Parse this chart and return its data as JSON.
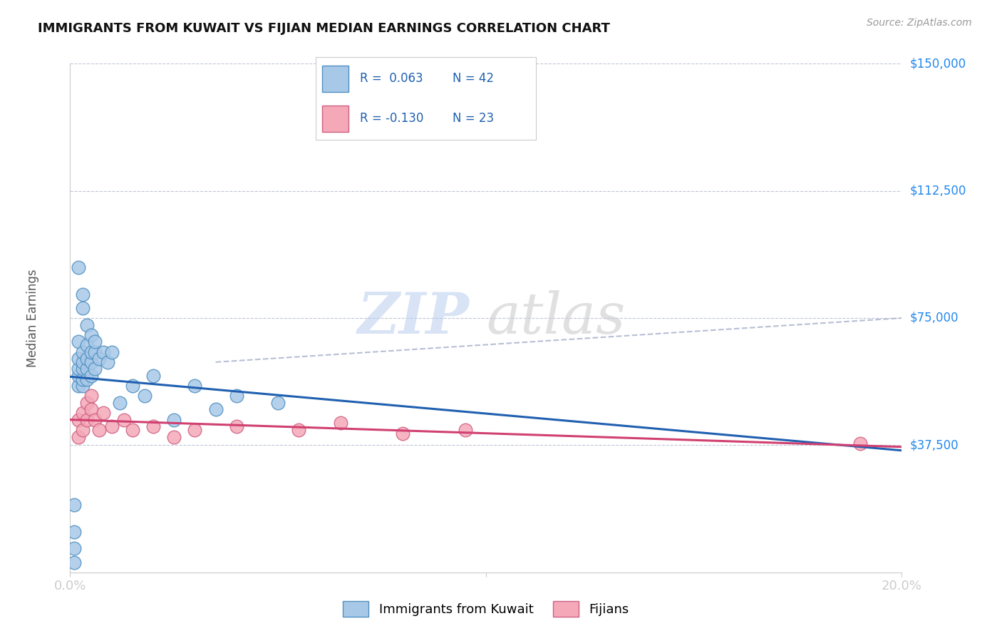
{
  "title": "IMMIGRANTS FROM KUWAIT VS FIJIAN MEDIAN EARNINGS CORRELATION CHART",
  "source": "Source: ZipAtlas.com",
  "ylabel": "Median Earnings",
  "y_ticks": [
    0,
    37500,
    75000,
    112500,
    150000
  ],
  "y_tick_labels": [
    "",
    "$37,500",
    "$75,000",
    "$112,500",
    "$150,000"
  ],
  "xmin": 0.0,
  "xmax": 0.2,
  "ymin": 0,
  "ymax": 150000,
  "blue_color": "#a8c8e8",
  "pink_color": "#f4a8b8",
  "blue_edge": "#5090c0",
  "pink_edge": "#d06080",
  "trend_blue": "#2060b0",
  "trend_pink": "#d04070",
  "dashed_color": "#b0b8d0",
  "legend_label_blue": "Immigrants from Kuwait",
  "legend_label_pink": "Fijians",
  "blue_x": [
    0.001,
    0.001,
    0.001,
    0.001,
    0.002,
    0.002,
    0.002,
    0.002,
    0.002,
    0.003,
    0.003,
    0.003,
    0.003,
    0.003,
    0.004,
    0.004,
    0.004,
    0.004,
    0.005,
    0.005,
    0.005,
    0.006,
    0.006,
    0.007,
    0.008,
    0.009,
    0.01,
    0.012,
    0.015,
    0.018,
    0.02,
    0.025,
    0.03,
    0.035,
    0.04,
    0.05,
    0.002,
    0.003,
    0.003,
    0.004,
    0.005,
    0.006
  ],
  "blue_y": [
    3000,
    7000,
    12000,
    20000,
    55000,
    58000,
    60000,
    63000,
    68000,
    55000,
    57000,
    60000,
    62000,
    65000,
    57000,
    60000,
    63000,
    67000,
    58000,
    62000,
    65000,
    60000,
    65000,
    63000,
    65000,
    62000,
    65000,
    50000,
    55000,
    52000,
    58000,
    45000,
    55000,
    48000,
    52000,
    50000,
    90000,
    82000,
    78000,
    73000,
    70000,
    68000
  ],
  "pink_x": [
    0.002,
    0.002,
    0.003,
    0.003,
    0.004,
    0.004,
    0.005,
    0.005,
    0.006,
    0.007,
    0.008,
    0.01,
    0.013,
    0.015,
    0.02,
    0.025,
    0.03,
    0.04,
    0.055,
    0.065,
    0.08,
    0.095,
    0.19
  ],
  "pink_y": [
    40000,
    45000,
    42000,
    47000,
    45000,
    50000,
    48000,
    52000,
    45000,
    42000,
    47000,
    43000,
    45000,
    42000,
    43000,
    40000,
    42000,
    43000,
    42000,
    44000,
    41000,
    42000,
    38000
  ],
  "watermark_text": "ZIP",
  "watermark_text2": "atlas",
  "background_color": "#ffffff",
  "grid_color": "#dddddd"
}
